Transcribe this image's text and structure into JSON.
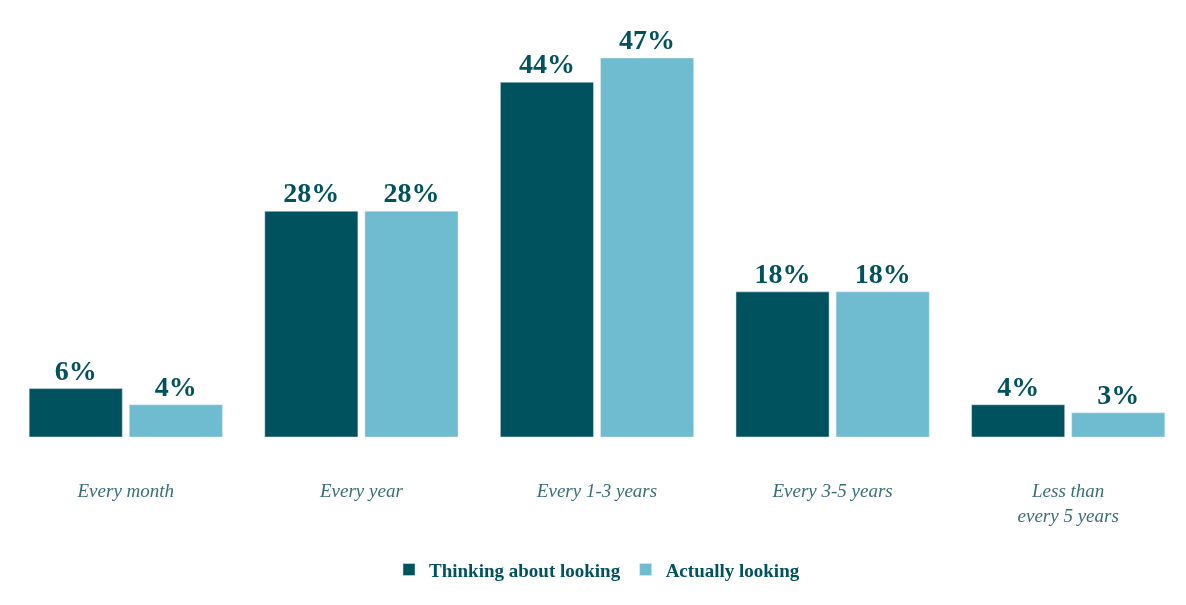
{
  "chart_data": {
    "type": "bar",
    "categories": [
      "Every month",
      "Every year",
      "Every 1-3 years",
      "Every 3-5 years",
      "Less than every 5 years"
    ],
    "series": [
      {
        "name": "Thinking about looking",
        "color": "#00525e",
        "values": [
          6,
          28,
          44,
          18,
          4
        ],
        "value_labels": [
          "6%",
          "28%",
          "44%",
          "18%",
          "4%"
        ]
      },
      {
        "name": "Actually looking",
        "color": "#6fbbd0",
        "values": [
          4,
          28,
          47,
          18,
          3
        ],
        "value_labels": [
          "4%",
          "28%",
          "47%",
          "18%",
          "3%"
        ]
      }
    ],
    "legend": "bottom"
  }
}
